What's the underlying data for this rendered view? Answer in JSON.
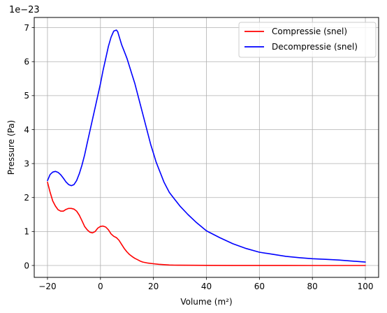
{
  "chart_data": {
    "type": "line",
    "xlabel": "Volume (m²)",
    "ylabel": "Pressure (Pa)",
    "offset_text": "1e−23",
    "scale_exponent": -23,
    "xlim": [
      -25,
      105
    ],
    "ylim": [
      -0.35,
      7.3
    ],
    "x_ticks": [
      -20,
      0,
      20,
      40,
      60,
      80,
      100
    ],
    "x_tick_labels": [
      "−20",
      "0",
      "20",
      "40",
      "60",
      "80",
      "100"
    ],
    "y_ticks": [
      0,
      1,
      2,
      3,
      4,
      5,
      6,
      7
    ],
    "y_tick_labels": [
      "0",
      "1",
      "2",
      "3",
      "4",
      "5",
      "6",
      "7"
    ],
    "grid": true,
    "legend_position": "top-right",
    "series": [
      {
        "name": "Compressie (snel)",
        "color": "#ff0000",
        "x": [
          -20,
          -19,
          -18,
          -17,
          -16,
          -15,
          -14,
          -13,
          -12,
          -11,
          -10,
          -9,
          -8,
          -7,
          -6,
          -5,
          -4,
          -3,
          -2,
          -1,
          0,
          1,
          2,
          3,
          4,
          5,
          6,
          7,
          8,
          9,
          10,
          11,
          12,
          13,
          14,
          15,
          16,
          18,
          20,
          22,
          24,
          26,
          28,
          30,
          35,
          40,
          50,
          60,
          70,
          80,
          90,
          100
        ],
        "y": [
          2.45,
          2.15,
          1.9,
          1.75,
          1.64,
          1.6,
          1.6,
          1.65,
          1.68,
          1.68,
          1.66,
          1.6,
          1.48,
          1.32,
          1.15,
          1.05,
          0.98,
          0.96,
          1.0,
          1.1,
          1.15,
          1.16,
          1.13,
          1.05,
          0.93,
          0.86,
          0.82,
          0.74,
          0.62,
          0.5,
          0.4,
          0.32,
          0.26,
          0.21,
          0.17,
          0.13,
          0.1,
          0.07,
          0.05,
          0.035,
          0.025,
          0.015,
          0.01,
          0.008,
          0.005,
          0.003,
          0.002,
          0.001,
          0.001,
          0.0,
          0.0,
          0.0
        ]
      },
      {
        "name": "Decompressie (snel)",
        "color": "#0000ff",
        "x": [
          -20,
          -19,
          -18,
          -17,
          -16,
          -15,
          -14,
          -13,
          -12,
          -11,
          -10,
          -9,
          -8,
          -7,
          -6,
          -5,
          -4,
          -3,
          -2,
          -1,
          0,
          1,
          2,
          3,
          4,
          5,
          6,
          6.5,
          7,
          8,
          9,
          10,
          11,
          12,
          13,
          14,
          15,
          16,
          17,
          18,
          19,
          20,
          21,
          22,
          23,
          24,
          25,
          26,
          28,
          30,
          33,
          36,
          40,
          45,
          50,
          55,
          60,
          65,
          70,
          75,
          80,
          85,
          90,
          95,
          100
        ],
        "y": [
          2.5,
          2.68,
          2.75,
          2.77,
          2.74,
          2.67,
          2.57,
          2.46,
          2.38,
          2.35,
          2.38,
          2.5,
          2.7,
          2.95,
          3.25,
          3.6,
          3.95,
          4.3,
          4.65,
          5.0,
          5.35,
          5.75,
          6.1,
          6.45,
          6.72,
          6.9,
          6.93,
          6.88,
          6.75,
          6.5,
          6.3,
          6.1,
          5.85,
          5.6,
          5.35,
          5.05,
          4.75,
          4.45,
          4.15,
          3.85,
          3.55,
          3.3,
          3.05,
          2.85,
          2.65,
          2.45,
          2.3,
          2.15,
          1.95,
          1.75,
          1.5,
          1.28,
          1.02,
          0.82,
          0.64,
          0.5,
          0.39,
          0.33,
          0.27,
          0.23,
          0.2,
          0.18,
          0.16,
          0.13,
          0.1
        ]
      }
    ]
  }
}
